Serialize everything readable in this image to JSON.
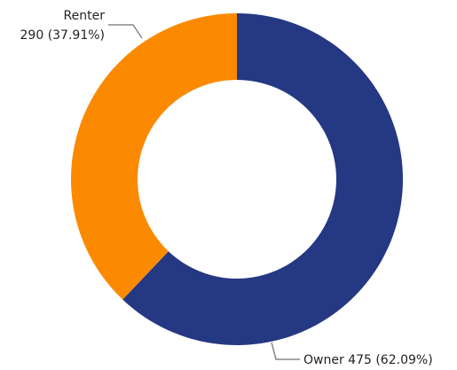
{
  "chart_data": {
    "type": "donut",
    "categories": [
      "Owner",
      "Renter"
    ],
    "values": [
      475,
      290
    ],
    "value_labels": [
      "475 (62.09%)",
      "290 (37.91%)"
    ],
    "colors": [
      "#253883",
      "#fb8a00"
    ]
  }
}
